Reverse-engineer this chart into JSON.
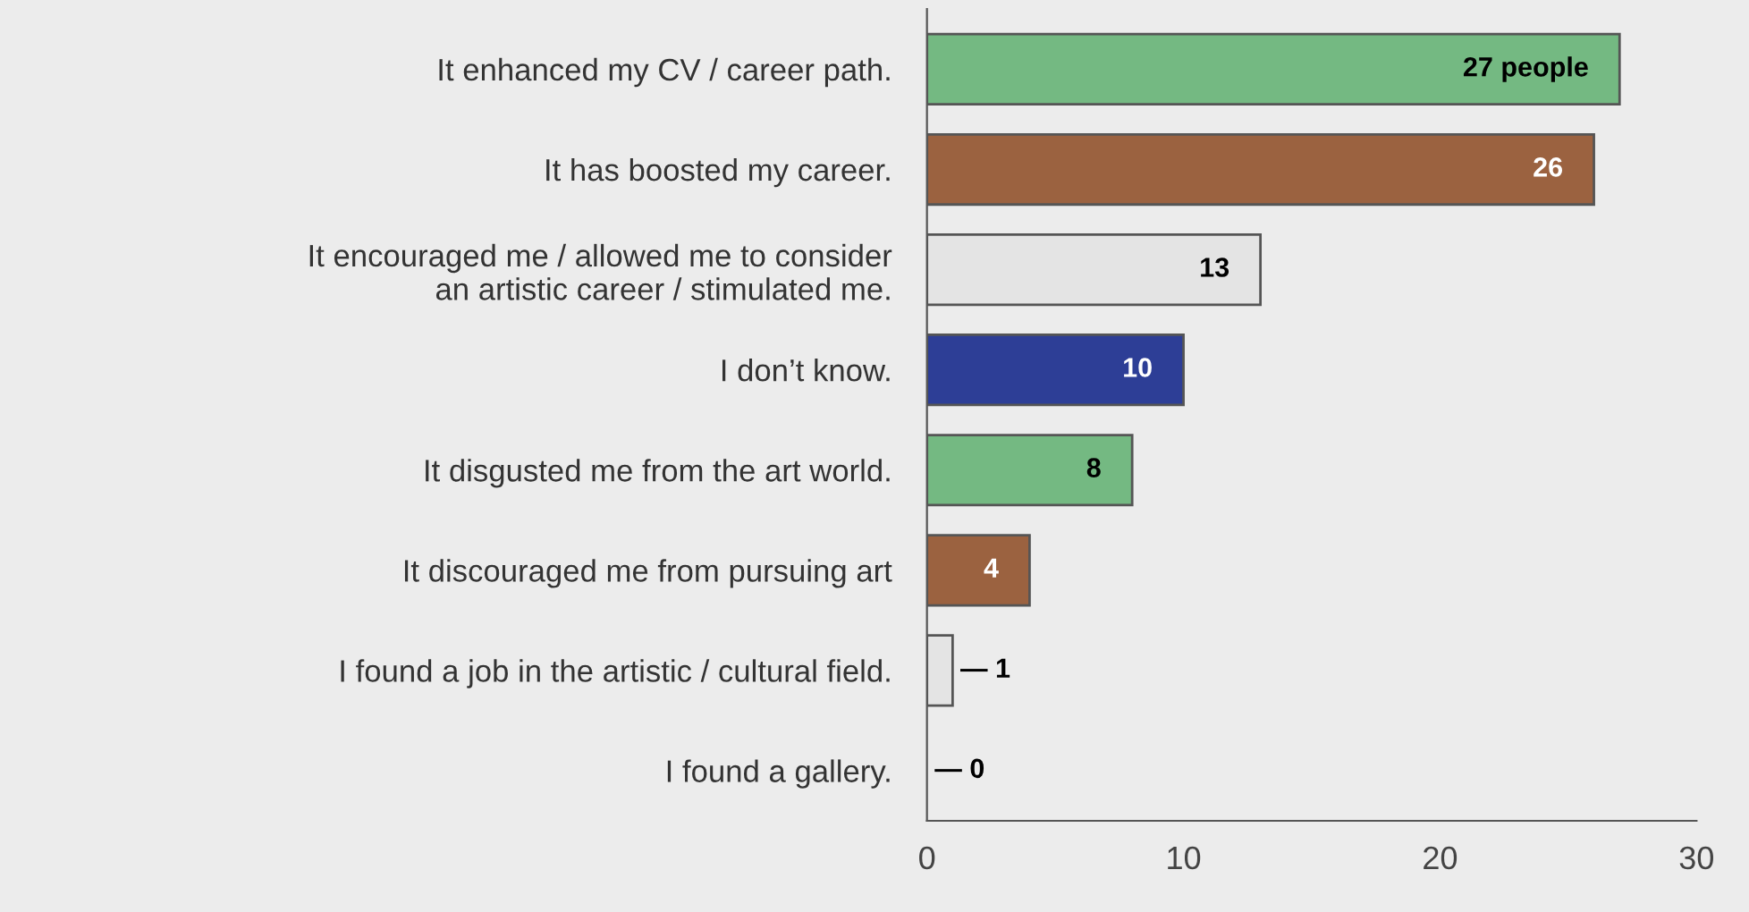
{
  "chart_data": {
    "type": "bar",
    "orientation": "horizontal",
    "categories": [
      "It enhanced my CV / career path.",
      "It has boosted my career.",
      "It encouraged me / allowed me to consider\nan artistic career / stimulated me.",
      "I don’t know.",
      "It disgusted me from the art world.",
      "It discouraged me from pursuing art",
      "I found a job in the artistic / cultural field.",
      "I found a gallery."
    ],
    "values": [
      27,
      26,
      13,
      10,
      8,
      4,
      1,
      0
    ],
    "colors": [
      "#74b982",
      "#9b6240",
      "#e4e4e4",
      "#2d3e96",
      "#74b982",
      "#9b6240",
      "#e4e4e4",
      "#e4e4e4"
    ],
    "value_labels": [
      "27 people",
      "26",
      "13",
      "10",
      "8",
      "4",
      "— 1",
      "— 0"
    ],
    "xlim": [
      0,
      30
    ],
    "xticks": [
      0,
      10,
      20,
      30
    ],
    "grid": false
  }
}
